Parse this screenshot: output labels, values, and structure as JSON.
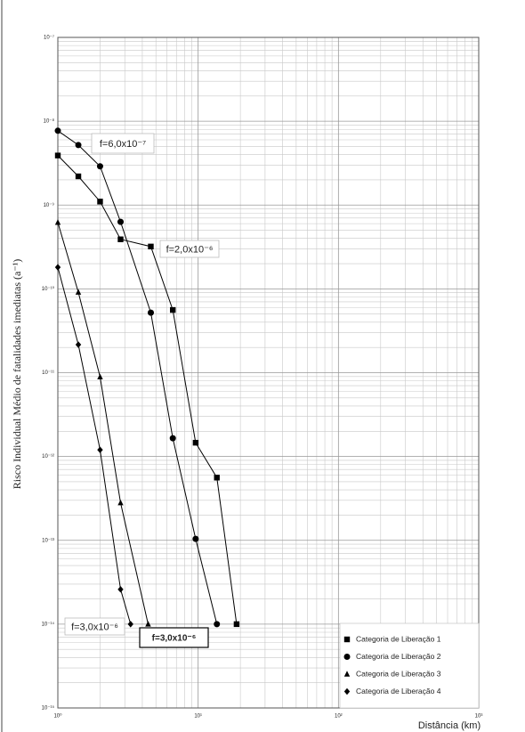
{
  "chart_data": {
    "type": "line",
    "xlabel": "Distância (km)",
    "ylabel": "Risco Individual Médio de fatalidades imediatas (a⁻¹)",
    "xscale": "log",
    "yscale": "log",
    "grid": true,
    "legend": "lower right",
    "xlim": [
      1,
      1000
    ],
    "xticks": [
      {
        "value": 1,
        "label": "10⁰"
      },
      {
        "value": 10,
        "label": "10¹"
      },
      {
        "value": 100,
        "label": "10²"
      },
      {
        "value": 1000,
        "label": "10³"
      }
    ],
    "ylim": [
      1e-15,
      1e-07
    ],
    "yticks": [
      {
        "value": 1e-07,
        "label": "10⁻⁷"
      },
      {
        "value": 1e-08,
        "label": "10⁻⁸"
      },
      {
        "value": 1e-09,
        "label": "10⁻⁹"
      },
      {
        "value": 1e-10,
        "label": "10⁻¹⁰"
      },
      {
        "value": 1e-11,
        "label": "10⁻¹¹"
      },
      {
        "value": 1e-12,
        "label": "10⁻¹²"
      },
      {
        "value": 1e-13,
        "label": "10⁻¹³"
      },
      {
        "value": 1e-14,
        "label": "10⁻¹⁴"
      },
      {
        "value": 1e-15,
        "label": "10⁻¹⁵"
      }
    ],
    "series": [
      {
        "name": "Categoria de Liberação 1",
        "color": "#000000",
        "marker": "square",
        "x": [
          1,
          1.4,
          2,
          2.8,
          4.6,
          6.6,
          9.6,
          13.6,
          18.8
        ],
        "values": [
          3.9e-09,
          2.2e-09,
          1.1e-09,
          3.9e-10,
          3.2e-10,
          5.6e-11,
          1.46e-12,
          5.6e-13,
          1e-14
        ]
      },
      {
        "name": "Categoria de Liberação 2",
        "color": "#000000",
        "marker": "circle",
        "x": [
          1,
          1.4,
          2,
          2.8,
          4.6,
          6.6,
          9.6,
          13.6
        ],
        "values": [
          7.7e-09,
          5.2e-09,
          2.9e-09,
          6.3e-10,
          5.2e-11,
          1.65e-12,
          1.04e-13,
          1e-14
        ]
      },
      {
        "name": "Categoria de Liberação 3",
        "color": "#000000",
        "marker": "triangle",
        "x": [
          1,
          1.4,
          2,
          2.8,
          4.4
        ],
        "values": [
          6.2e-10,
          9.1e-11,
          8.9e-12,
          2.8e-13,
          1e-14
        ]
      },
      {
        "name": "Categoria de Liberação 4",
        "color": "#000000",
        "marker": "diamond",
        "x": [
          1,
          1.4,
          2,
          2.8,
          3.3
        ],
        "values": [
          1.81e-10,
          2.16e-11,
          1.2e-12,
          2.6e-14,
          1e-14
        ]
      }
    ],
    "annotations": [
      "f=6,0x10⁻⁷",
      "f=2,0x10⁻⁶",
      "f=3,0x10⁻⁶",
      "f=3,0x10⁻⁶"
    ]
  }
}
